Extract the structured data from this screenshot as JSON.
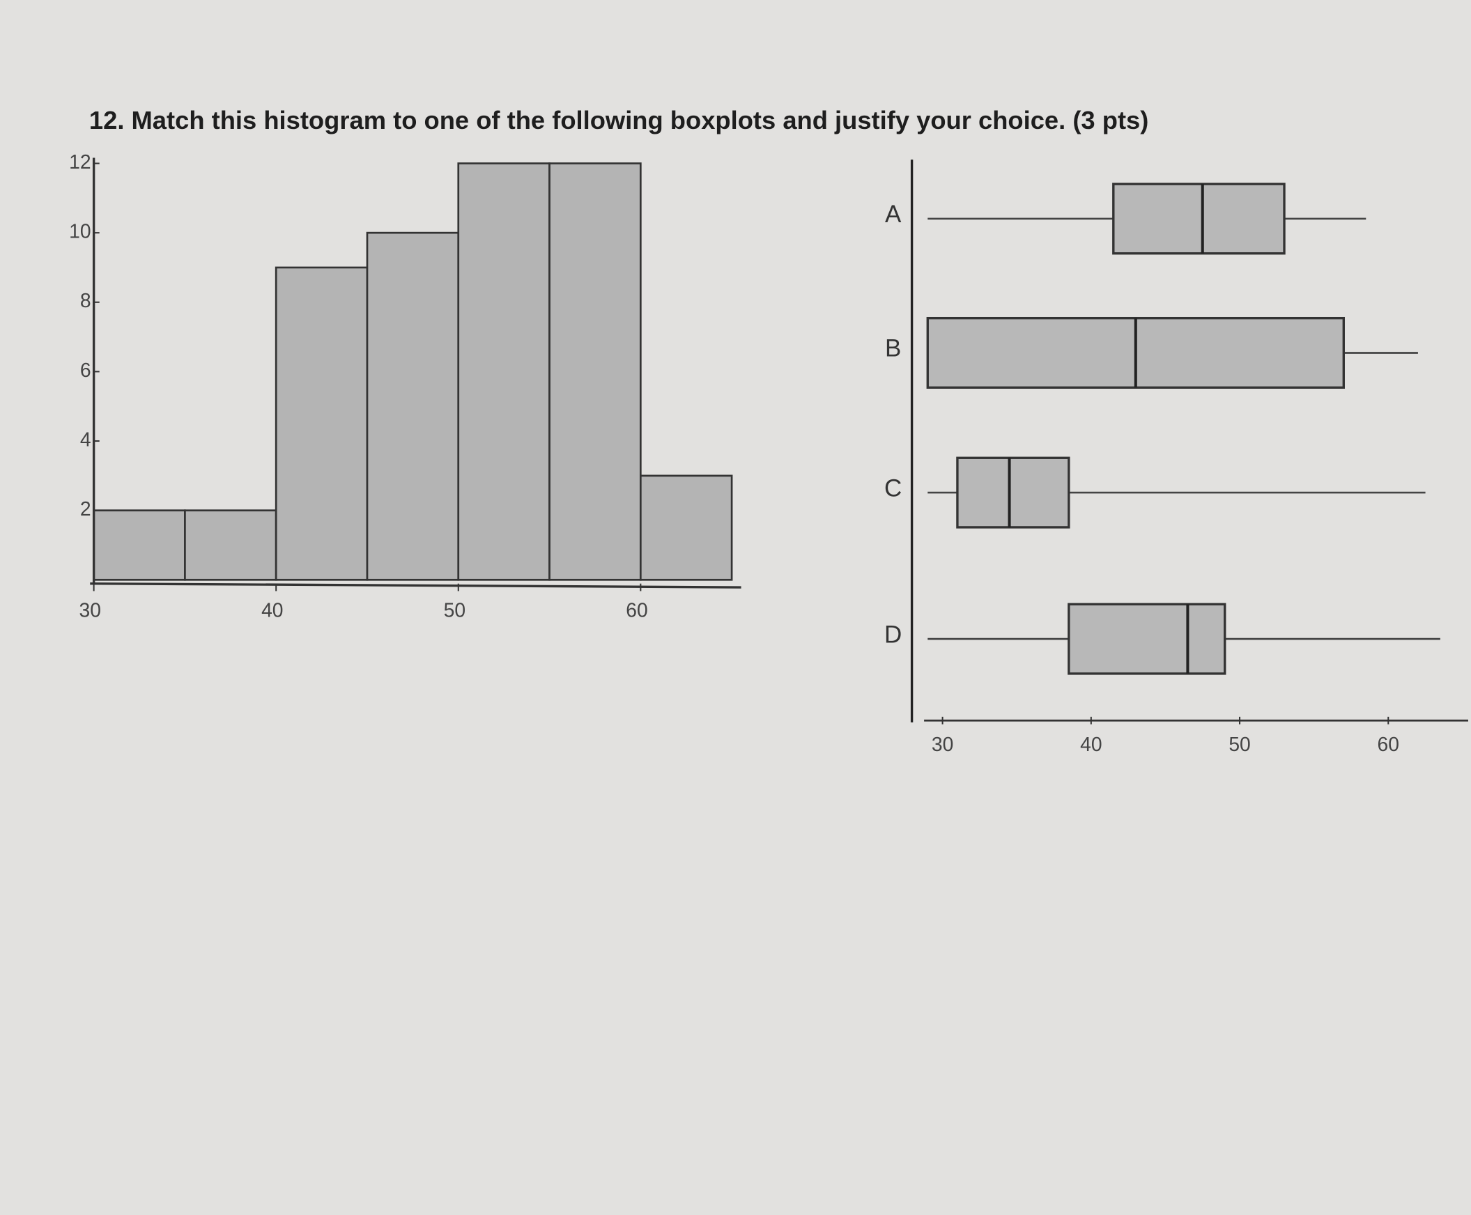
{
  "question": "12. Match this histogram to one of the following boxplots and justify your choice. (3 pts)",
  "chart_data": [
    {
      "type": "histogram",
      "bins": [
        30,
        35,
        40,
        45,
        50,
        55,
        60,
        65
      ],
      "values": [
        2,
        2,
        9,
        10,
        12,
        12,
        3
      ],
      "color": "#b4b4b4",
      "xlim": [
        30,
        65
      ],
      "xticks": [
        30,
        40,
        50,
        60
      ],
      "ylim": [
        0,
        12
      ],
      "yticks": [
        2,
        4,
        6,
        8,
        10,
        12
      ]
    },
    {
      "type": "box",
      "categories": [
        "A",
        "B",
        "C",
        "D"
      ],
      "color": "#b8b8b8",
      "boxes": [
        {
          "min": 29,
          "q1": 41.5,
          "median": 47.5,
          "q3": 53,
          "max": 58.5
        },
        {
          "min": 29,
          "q1": 29,
          "median": 43,
          "q3": 57,
          "max": 62
        },
        {
          "min": 29,
          "q1": 31,
          "median": 34.5,
          "q3": 38.5,
          "max": 62.5
        },
        {
          "min": 29,
          "q1": 38.5,
          "median": 46.5,
          "q3": 49,
          "max": 63.5
        }
      ],
      "xlim": [
        28,
        65
      ],
      "xticks": [
        30,
        40,
        50,
        60
      ]
    }
  ]
}
